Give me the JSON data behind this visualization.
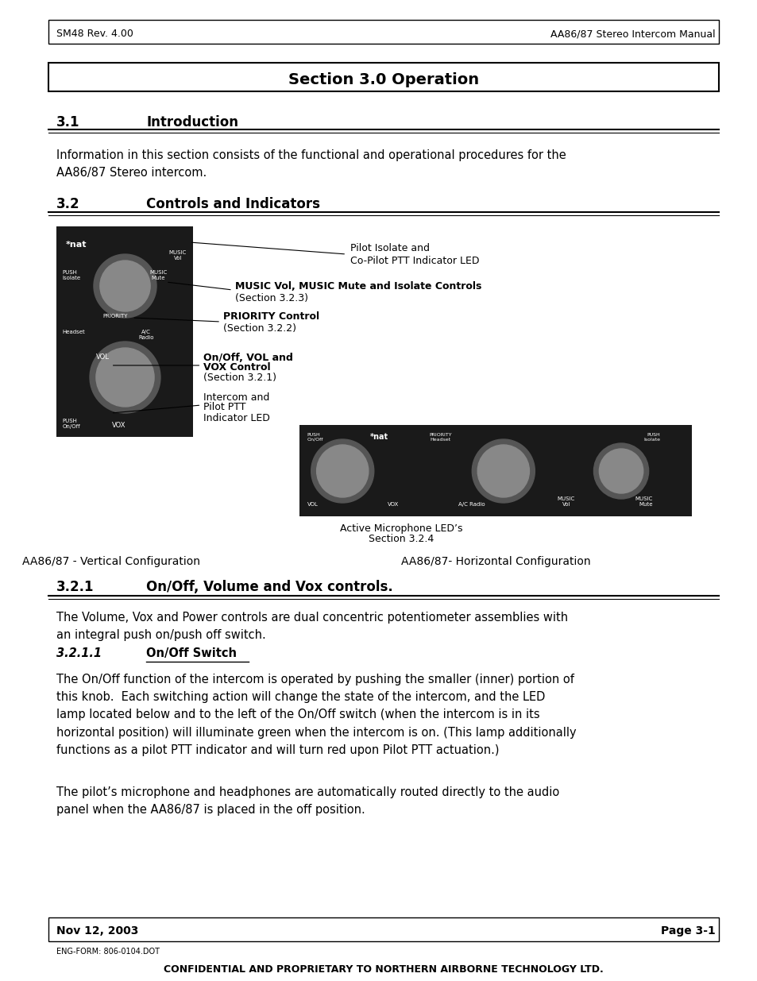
{
  "header_left": "SM48 Rev. 4.00",
  "header_right": "AA86/87 Stereo Intercom Manual",
  "section_title": "Section 3.0 Operation",
  "sec31_num": "3.1",
  "sec31_title": "Introduction",
  "sec31_body": "Information in this section consists of the functional and operational procedures for the\nAA86/87 Stereo intercom.",
  "sec32_num": "3.2",
  "sec32_title": "Controls and Indicators",
  "annotation1_title": "Pilot Isolate and",
  "annotation1_sub": "Co-Pilot PTT Indicator LED",
  "annotation2_title": "MUSIC Vol, MUSIC Mute and Isolate Controls",
  "annotation2_sub": "(Section 3.2.3)",
  "annotation3_title": "PRIORITY Control",
  "annotation3_sub": "(Section 3.2.2)",
  "annotation4_title": "On/Off, VOL and",
  "annotation4_sub": "VOX Control",
  "annotation4_sub2": "(Section 3.2.1)",
  "annotation5_title": "Intercom and",
  "annotation5_sub": "Pilot PTT",
  "annotation5_sub2": "Indicator LED",
  "annotation6_title": "Active Microphone LED’s",
  "annotation6_sub": "Section 3.2.4",
  "caption_left": "AA86/87 - Vertical Configuration",
  "caption_right": "AA86/87- Horizontal Configuration",
  "sec321_num": "3.2.1",
  "sec321_title": "On/Off, Volume and Vox controls.",
  "sec321_body": "The Volume, Vox and Power controls are dual concentric potentiometer assemblies with\nan integral push on/push off switch.",
  "sec3211_num": "3.2.1.1",
  "sec3211_title": "On/Off Switch",
  "sec3211_body1": "The On/Off function of the intercom is operated by pushing the smaller (inner) portion of\nthis knob.  Each switching action will change the state of the intercom, and the LED\nlamp located below and to the left of the On/Off switch (when the intercom is in its\nhorizontal position) will illuminate green when the intercom is on. (This lamp additionally\nfunctions as a pilot PTT indicator and will turn red upon Pilot PTT actuation.)",
  "sec3211_body2": "The pilot’s microphone and headphones are automatically routed directly to the audio\npanel when the AA86/87 is placed in the off position.",
  "footer_left": "Nov 12, 2003",
  "footer_right": "Page 3-1",
  "footer_form": "ENG-FORM: 806-0104.DOT",
  "footer_conf": "CONFIDENTIAL AND PROPRIETARY TO NORTHERN AIRBORNE TECHNOLOGY LTD.",
  "bg_color": "#ffffff",
  "text_color": "#000000",
  "header_bg": "#ffffff",
  "footer_bg": "#ffffff"
}
